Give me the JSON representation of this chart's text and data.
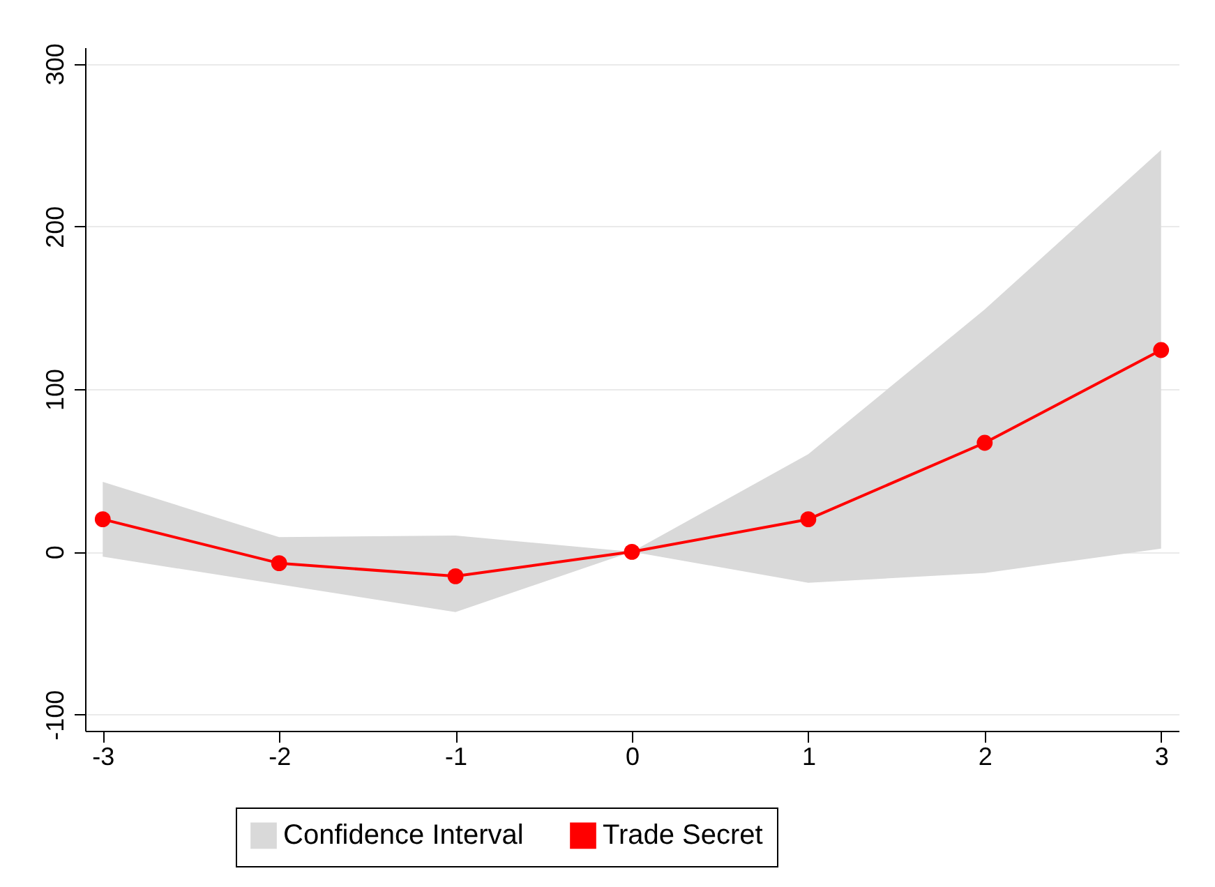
{
  "chart_data": {
    "type": "line",
    "x": [
      -3,
      -2,
      -1,
      0,
      1,
      2,
      3
    ],
    "series": [
      {
        "name": "Confidence Interval",
        "type": "area",
        "color": "#d9d9d9",
        "values": [
          null,
          null,
          null,
          null,
          null,
          null,
          null
        ],
        "lower": [
          -3,
          -20,
          -37,
          0,
          -19,
          -13,
          2
        ],
        "upper": [
          43,
          9,
          10,
          0,
          60,
          149,
          247
        ]
      },
      {
        "name": "Trade Secret",
        "type": "line",
        "color": "#ff0000",
        "values": [
          20,
          -7,
          -15,
          0,
          20,
          67,
          124
        ]
      }
    ],
    "xlim": [
      -3.1,
      3.1
    ],
    "xticks": [
      -3,
      -2,
      -1,
      0,
      1,
      2,
      3
    ],
    "ylim": [
      -110,
      310
    ],
    "yticks": [
      -100,
      0,
      100,
      200,
      300
    ],
    "grid": "y",
    "legend": "bottom",
    "marker": "circle"
  }
}
